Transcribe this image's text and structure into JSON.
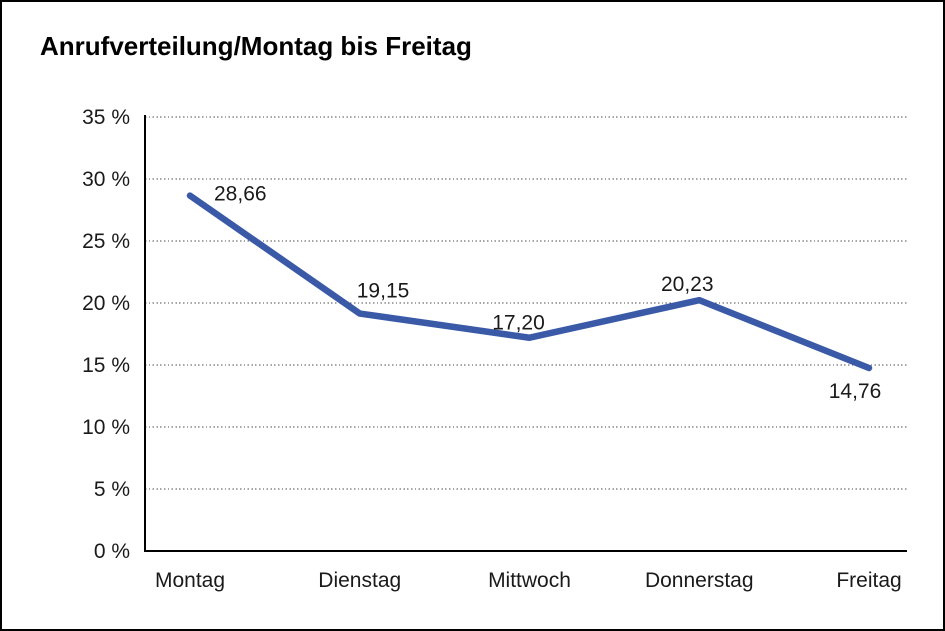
{
  "chart_data": {
    "type": "line",
    "title": "Anrufverteilung/Montag bis Freitag",
    "categories": [
      "Montag",
      "Dienstag",
      "Mittwoch",
      "Donnerstag",
      "Freitag"
    ],
    "series": [
      {
        "name": "Anrufverteilung",
        "values": [
          28.66,
          19.15,
          17.2,
          20.23,
          14.76
        ]
      }
    ],
    "value_labels": [
      "28,66",
      "19,15",
      "17,20",
      "20,23",
      "14,76"
    ],
    "xlabel": "",
    "ylabel": "",
    "ylim": [
      0,
      35
    ],
    "y_tick_step": 5,
    "y_tick_values": [
      35,
      30,
      25,
      20,
      15,
      10,
      5,
      0
    ],
    "y_tick_labels": [
      "35 %",
      "30 %",
      "25 %",
      "20 %",
      "15 %",
      "10 %",
      "5 %",
      "0 %"
    ],
    "grid": "horizontal-dotted",
    "legend": "none",
    "colors": {
      "line": "#3a5aa8",
      "axis": "#000000",
      "gridline": "#4d4d4d",
      "text": "#1a1a1a",
      "background": "#ffffff",
      "border": "#000000"
    }
  }
}
